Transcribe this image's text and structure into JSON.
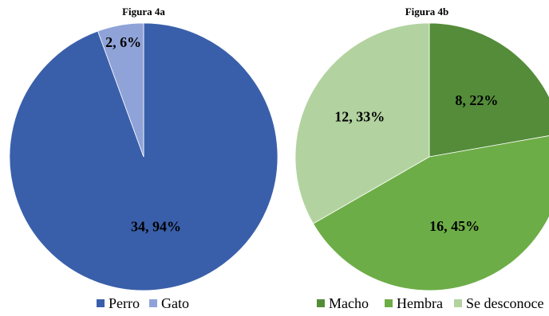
{
  "chart_data": [
    {
      "type": "pie",
      "title": "Figura 4a",
      "categories": [
        "Perro",
        "Gato"
      ],
      "values": [
        34,
        2
      ],
      "percentages": [
        "94%",
        "6%"
      ],
      "data_labels": [
        "34, 94%",
        "2, 6%"
      ],
      "colors": [
        "#3A5FAA",
        "#8FA3D8"
      ],
      "legend": "bottom"
    },
    {
      "type": "pie",
      "title": "Figura 4b",
      "categories": [
        "Macho",
        "Hembra",
        "Se desconoce"
      ],
      "values": [
        8,
        16,
        12
      ],
      "percentages": [
        "22%",
        "45%",
        "33%"
      ],
      "data_labels": [
        "8, 22%",
        "16, 45%",
        "12, 33%"
      ],
      "colors": [
        "#548C3A",
        "#6DAD47",
        "#B2D3A0"
      ],
      "legend": "bottom"
    }
  ]
}
